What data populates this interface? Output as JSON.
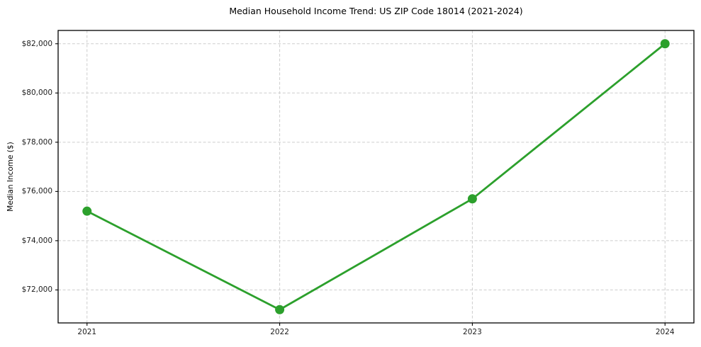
{
  "chart_data": {
    "type": "line",
    "title": "Median Household Income Trend: US ZIP Code 18014 (2021-2024)",
    "xlabel": "",
    "ylabel": "Median Income ($)",
    "x": [
      2021,
      2022,
      2023,
      2024
    ],
    "x_tick_labels": [
      "2021",
      "2022",
      "2023",
      "2024"
    ],
    "series": [
      {
        "name": "median-household-income",
        "values": [
          75200,
          71200,
          75700,
          82000
        ]
      }
    ],
    "y_ticks": [
      72000,
      74000,
      76000,
      78000,
      80000,
      82000
    ],
    "y_tick_labels": [
      "$72,000",
      "$74,000",
      "$76,000",
      "$78,000",
      "$80,000",
      "$82,000"
    ],
    "xlim": [
      2020.85,
      2024.15
    ],
    "ylim": [
      70660,
      82540
    ],
    "grid": true,
    "grid_style": "dashed",
    "legend_position": "none",
    "line_color": "#2ca02c",
    "grid_color": "#cdcdcd",
    "marker": "circle"
  }
}
